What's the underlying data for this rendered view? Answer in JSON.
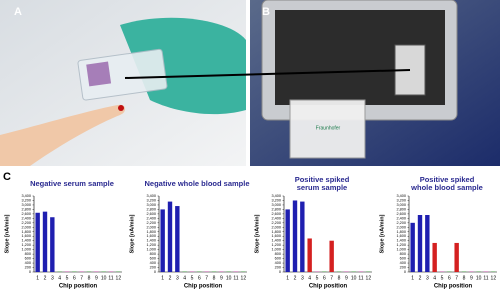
{
  "panel_labels": [
    "A",
    "B",
    "C"
  ],
  "photo_text": "Fraunhofer",
  "chart_data": [
    {
      "type": "bar",
      "title_lines": [
        "Negative serum sample"
      ],
      "y_label": "Slope [nA/min]",
      "x_label": "Chip position",
      "categories": [
        "1",
        "2",
        "3",
        "4",
        "5",
        "6",
        "7",
        "8",
        "9",
        "10",
        "11",
        "12"
      ],
      "values": [
        2650,
        2700,
        2450,
        20,
        20,
        20,
        20,
        20,
        20,
        20,
        20,
        20
      ],
      "colors": [
        "#1f1fb0",
        "#1f1fb0",
        "#1f1fb0",
        "#3a9a3a",
        "#c040a0",
        "#3a9a3a",
        "#c040a0",
        "#3a9a3a",
        "#c040a0",
        "#3a9a3a",
        "#c040a0",
        "#3a9a3a"
      ],
      "ylim": [
        0,
        3400
      ],
      "yticks": [
        0,
        200,
        400,
        600,
        800,
        {
          "value": 1000,
          "label": "1,000"
        },
        {
          "value": 1200,
          "label": "1,200"
        },
        {
          "value": 1400,
          "label": "1,400"
        },
        {
          "value": 1600,
          "label": "1,600"
        },
        {
          "value": 1800,
          "label": "1,800"
        },
        {
          "value": 2000,
          "label": "2,000"
        },
        {
          "value": 2200,
          "label": "2,200"
        },
        {
          "value": 2400,
          "label": "2,400"
        },
        {
          "value": 2600,
          "label": "2,600"
        },
        {
          "value": 2800,
          "label": "2,800"
        },
        {
          "value": 3000,
          "label": "3,000"
        },
        {
          "value": 3200,
          "label": "3,200"
        },
        {
          "value": 3400,
          "label": "3,400"
        }
      ]
    },
    {
      "type": "bar",
      "title_lines": [
        "Negative whole blood sample"
      ],
      "y_label": "Slope [nA/min]",
      "x_label": "Chip position",
      "categories": [
        "1",
        "2",
        "3",
        "4",
        "5",
        "6",
        "7",
        "8",
        "9",
        "10",
        "11",
        "12"
      ],
      "values": [
        2800,
        3150,
        2950,
        20,
        20,
        20,
        20,
        20,
        20,
        20,
        20,
        20
      ],
      "colors": [
        "#1f1fb0",
        "#1f1fb0",
        "#1f1fb0",
        "#3a9a3a",
        "#c040a0",
        "#3a9a3a",
        "#c040a0",
        "#3a9a3a",
        "#c040a0",
        "#3a9a3a",
        "#c040a0",
        "#3a9a3a"
      ],
      "ylim": [
        0,
        3400
      ],
      "yticks": [
        0,
        200,
        400,
        600,
        800,
        {
          "value": 1000,
          "label": "1,000"
        },
        {
          "value": 1200,
          "label": "1,200"
        },
        {
          "value": 1400,
          "label": "1,400"
        },
        {
          "value": 1600,
          "label": "1,600"
        },
        {
          "value": 1800,
          "label": "1,800"
        },
        {
          "value": 2000,
          "label": "2,000"
        },
        {
          "value": 2200,
          "label": "2,200"
        },
        {
          "value": 2400,
          "label": "2,400"
        },
        {
          "value": 2600,
          "label": "2,600"
        },
        {
          "value": 2800,
          "label": "2,800"
        },
        {
          "value": 3000,
          "label": "3,000"
        },
        {
          "value": 3200,
          "label": "3,200"
        },
        {
          "value": 3400,
          "label": "3,400"
        }
      ]
    },
    {
      "type": "bar",
      "title_lines": [
        "Positive spiked",
        "serum sample"
      ],
      "y_label": "Slope [nA/min]",
      "x_label": "Chip position",
      "categories": [
        "1",
        "2",
        "3",
        "4",
        "5",
        "6",
        "7",
        "8",
        "9",
        "10",
        "11",
        "12"
      ],
      "values": [
        2800,
        3200,
        3150,
        1500,
        20,
        20,
        1400,
        20,
        20,
        20,
        20,
        20
      ],
      "colors": [
        "#1f1fb0",
        "#1f1fb0",
        "#1f1fb0",
        "#d42020",
        "#c040a0",
        "#3a9a3a",
        "#d42020",
        "#3a9a3a",
        "#c040a0",
        "#3a9a3a",
        "#c040a0",
        "#3a9a3a"
      ],
      "ylim": [
        0,
        3400
      ],
      "yticks": [
        0,
        200,
        400,
        600,
        800,
        {
          "value": 1000,
          "label": "1,000"
        },
        {
          "value": 1200,
          "label": "1,200"
        },
        {
          "value": 1400,
          "label": "1,400"
        },
        {
          "value": 1600,
          "label": "1,600"
        },
        {
          "value": 1800,
          "label": "1,800"
        },
        {
          "value": 2000,
          "label": "2,000"
        },
        {
          "value": 2200,
          "label": "2,200"
        },
        {
          "value": 2400,
          "label": "2,400"
        },
        {
          "value": 2600,
          "label": "2,600"
        },
        {
          "value": 2800,
          "label": "2,800"
        },
        {
          "value": 3000,
          "label": "3,000"
        },
        {
          "value": 3200,
          "label": "3,200"
        },
        {
          "value": 3400,
          "label": "3,400"
        }
      ]
    },
    {
      "type": "bar",
      "title_lines": [
        "Positive spiked",
        "whole blood sample"
      ],
      "y_label": "Slope [nA/min]",
      "x_label": "Chip position",
      "categories": [
        "1",
        "2",
        "3",
        "4",
        "5",
        "6",
        "7",
        "8",
        "9",
        "10",
        "11",
        "12"
      ],
      "values": [
        2200,
        2550,
        2550,
        1300,
        20,
        20,
        1300,
        20,
        20,
        20,
        20,
        20
      ],
      "colors": [
        "#1f1fb0",
        "#1f1fb0",
        "#1f1fb0",
        "#d42020",
        "#c040a0",
        "#3a9a3a",
        "#d42020",
        "#3a9a3a",
        "#c040a0",
        "#3a9a3a",
        "#c040a0",
        "#3a9a3a"
      ],
      "ylim": [
        0,
        3400
      ],
      "yticks": [
        0,
        200,
        400,
        600,
        800,
        {
          "value": 1000,
          "label": "1,000"
        },
        {
          "value": 1200,
          "label": "1,200"
        },
        {
          "value": 1400,
          "label": "1,400"
        },
        {
          "value": 1600,
          "label": "1,600"
        },
        {
          "value": 1800,
          "label": "1,800"
        },
        {
          "value": 2000,
          "label": "2,000"
        },
        {
          "value": 2200,
          "label": "2,200"
        },
        {
          "value": 2400,
          "label": "2,400"
        },
        {
          "value": 2600,
          "label": "2,600"
        },
        {
          "value": 2800,
          "label": "2,800"
        },
        {
          "value": 3000,
          "label": "3,000"
        },
        {
          "value": 3200,
          "label": "3,200"
        },
        {
          "value": 3400,
          "label": "3,400"
        }
      ]
    }
  ]
}
